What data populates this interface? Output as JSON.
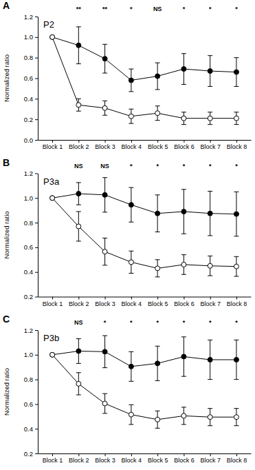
{
  "chart_data": [
    {
      "type": "line",
      "title": "A",
      "subtitle": "P2",
      "y_label": "Normalized ratio",
      "categories": [
        "Block 1",
        "Block 2",
        "Block 3",
        "Block 4",
        "Block 5",
        "Block 6",
        "Block 7",
        "Block 8"
      ],
      "ylim": [
        0,
        1.2
      ],
      "yticks": [
        {
          "value": 0,
          "label": "0.0"
        },
        0.2,
        0.4,
        0.6,
        0.8,
        {
          "value": 1,
          "label": "1.0"
        },
        1.2
      ],
      "series": [
        {
          "color": "#000000",
          "marker": "circle",
          "values": [
            1.0,
            0.92,
            0.79,
            0.58,
            0.62,
            0.69,
            0.67,
            0.66
          ],
          "errors": [
            0,
            0.18,
            0.14,
            0.11,
            0.13,
            0.15,
            0.15,
            0.14
          ]
        },
        {
          "color": "#000000",
          "marker": "open-circle",
          "values": [
            1.0,
            0.34,
            0.31,
            0.23,
            0.26,
            0.21,
            0.21,
            0.21
          ],
          "errors": [
            0,
            0.06,
            0.07,
            0.07,
            0.07,
            0.06,
            0.06,
            0.06
          ]
        }
      ],
      "annotations": [
        {
          "category": "Block 2",
          "text": "**"
        },
        {
          "category": "Block 3",
          "text": "**"
        },
        {
          "category": "Block 4",
          "text": "*"
        },
        {
          "category": "Block 5",
          "text": "NS"
        },
        {
          "category": "Block 6",
          "text": "*"
        },
        {
          "category": "Block 7",
          "text": "*"
        },
        {
          "category": "Block 8",
          "text": "*"
        }
      ]
    },
    {
      "type": "line",
      "title": "B",
      "subtitle": "P3a",
      "y_label": "Normalized ratio",
      "categories": [
        "Block 1",
        "Block 2",
        "Block 3",
        "Block 4",
        "Block 5",
        "Block 6",
        "Block 7",
        "Block 8"
      ],
      "ylim": [
        0.2,
        1.2
      ],
      "yticks": [
        0.2,
        0.4,
        0.6,
        0.8,
        {
          "value": 1,
          "label": "1.0"
        },
        1.2
      ],
      "series": [
        {
          "color": "#000000",
          "marker": "circle",
          "values": [
            1.0,
            1.035,
            1.025,
            0.945,
            0.875,
            0.89,
            0.875,
            0.87
          ],
          "errors": [
            0,
            0.09,
            0.14,
            0.14,
            0.15,
            0.18,
            0.18,
            0.18
          ]
        },
        {
          "color": "#000000",
          "marker": "open-circle",
          "values": [
            1.0,
            0.77,
            0.565,
            0.48,
            0.43,
            0.46,
            0.45,
            0.445
          ],
          "errors": [
            0,
            0.12,
            0.11,
            0.09,
            0.07,
            0.08,
            0.08,
            0.08
          ]
        }
      ],
      "annotations": [
        {
          "category": "Block 2",
          "text": "NS"
        },
        {
          "category": "Block 3",
          "text": "NS"
        },
        {
          "category": "Block 4",
          "text": "*"
        },
        {
          "category": "Block 5",
          "text": "*"
        },
        {
          "category": "Block 6",
          "text": "*"
        },
        {
          "category": "Block 7",
          "text": "*"
        },
        {
          "category": "Block 8",
          "text": "*"
        }
      ]
    },
    {
      "type": "line",
      "title": "C",
      "subtitle": "P3b",
      "y_label": "Normalized ratio",
      "categories": [
        "Block 1",
        "Block 2",
        "Block 3",
        "Block 4",
        "Block 5",
        "Block 6",
        "Block 7",
        "Block 8"
      ],
      "ylim": [
        0.2,
        1.2
      ],
      "yticks": [
        0.2,
        0.4,
        0.6,
        0.8,
        {
          "value": 1,
          "label": "1.0"
        },
        1.2
      ],
      "series": [
        {
          "color": "#000000",
          "marker": "circle",
          "values": [
            1.0,
            1.03,
            1.025,
            0.905,
            0.93,
            0.985,
            0.96,
            0.96
          ],
          "errors": [
            0,
            0.1,
            0.13,
            0.12,
            0.14,
            0.16,
            0.16,
            0.16
          ]
        },
        {
          "color": "#000000",
          "marker": "open-circle",
          "values": [
            1.0,
            0.765,
            0.605,
            0.515,
            0.475,
            0.505,
            0.495,
            0.495
          ],
          "errors": [
            0,
            0.09,
            0.08,
            0.08,
            0.07,
            0.07,
            0.07,
            0.07
          ]
        }
      ],
      "annotations": [
        {
          "category": "Block 2",
          "text": "NS"
        },
        {
          "category": "Block 3",
          "text": "*"
        },
        {
          "category": "Block 4",
          "text": "*"
        },
        {
          "category": "Block 5",
          "text": "*"
        },
        {
          "category": "Block 6",
          "text": "*"
        },
        {
          "category": "Block 7",
          "text": "*"
        },
        {
          "category": "Block 8",
          "text": "*"
        }
      ]
    }
  ]
}
